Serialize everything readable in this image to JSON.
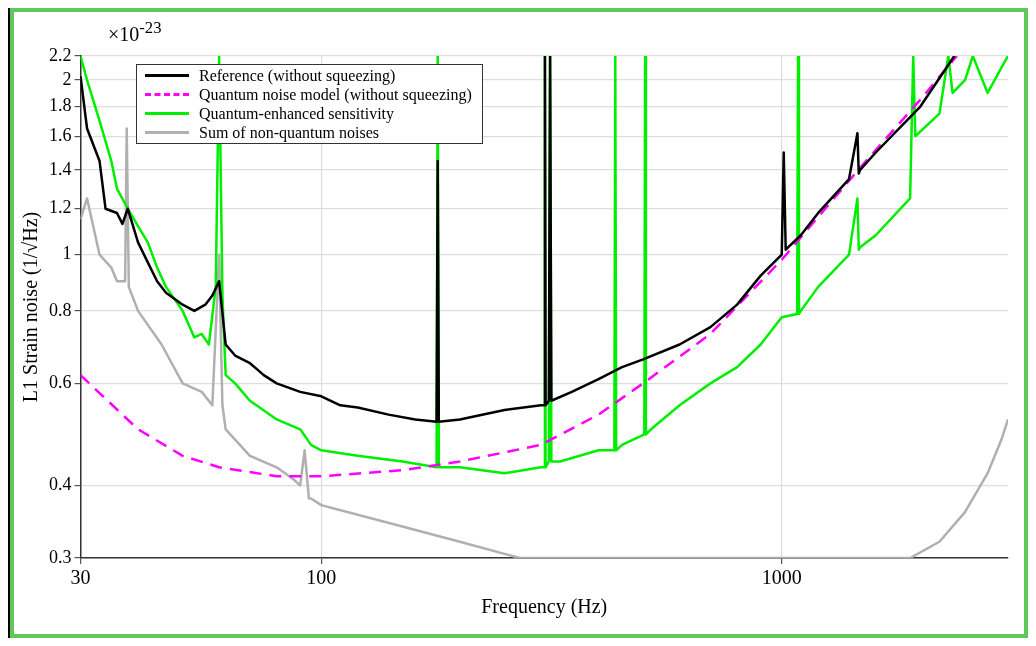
{
  "chart_data": {
    "type": "line",
    "xlabel": "Frequency (Hz)",
    "ylabel": "L1 Strain noise (1/√Hz)",
    "annotations": [
      "×10$^{-23}$"
    ],
    "log": "xy",
    "grid": true,
    "legend": "top left",
    "marker": "none",
    "xlim": [
      30,
      3100
    ],
    "ylim": [
      0.3,
      2.2
    ],
    "xticks": [
      30,
      100,
      1000
    ],
    "yticks": [
      0.3,
      0.4,
      0.6,
      0.8,
      1,
      1.2,
      1.4,
      1.6,
      1.8,
      2,
      2.2
    ],
    "series": [
      {
        "name": "Reference (without squeezing)",
        "color": "#000000",
        "line_style": "solid",
        "x": [
          30,
          31,
          33,
          34,
          36,
          37,
          38,
          40,
          42,
          44,
          46,
          50,
          53,
          56,
          58,
          60,
          62,
          65,
          70,
          75,
          80,
          90,
          100,
          110,
          120,
          140,
          160,
          178,
          179,
          180,
          200,
          250,
          300,
          305,
          306,
          307,
          312,
          314,
          316,
          350,
          400,
          450,
          500,
          600,
          700,
          800,
          900,
          1000,
          1010,
          1020,
          1100,
          1200,
          1400,
          1460,
          1470,
          1480,
          1600,
          2000,
          2370
        ],
        "values": [
          2.03,
          1.65,
          1.45,
          1.2,
          1.18,
          1.13,
          1.2,
          1.05,
          0.97,
          0.9,
          0.86,
          0.82,
          0.8,
          0.82,
          0.85,
          0.9,
          0.7,
          0.67,
          0.65,
          0.62,
          0.6,
          0.58,
          0.57,
          0.55,
          0.545,
          0.53,
          0.52,
          0.515,
          1.45,
          0.515,
          0.52,
          0.54,
          0.55,
          0.55,
          2.2,
          0.55,
          0.56,
          2.2,
          0.56,
          0.58,
          0.61,
          0.64,
          0.66,
          0.7,
          0.75,
          0.82,
          0.92,
          1.0,
          1.5,
          1.02,
          1.08,
          1.18,
          1.35,
          1.62,
          1.38,
          1.4,
          1.5,
          1.8,
          2.2
        ]
      },
      {
        "name": "Quantum noise model (without squeezing)",
        "color": "#ff00ff",
        "line_style": "dashed",
        "x": [
          30,
          40,
          50,
          60,
          80,
          100,
          150,
          200,
          300,
          400,
          500,
          700,
          1000,
          1500,
          2000,
          2400
        ],
        "values": [
          0.62,
          0.5,
          0.45,
          0.43,
          0.415,
          0.415,
          0.425,
          0.44,
          0.47,
          0.53,
          0.6,
          0.73,
          0.98,
          1.43,
          1.85,
          2.2
        ]
      },
      {
        "name": "Quantum-enhanced sensitivity",
        "color": "#00ee00",
        "line_style": "solid",
        "x": [
          30,
          31,
          33,
          35,
          36,
          38,
          40,
          42,
          44,
          46,
          50,
          53,
          55,
          57,
          59,
          60,
          61,
          62,
          65,
          70,
          80,
          90,
          95,
          100,
          120,
          150,
          178,
          179,
          180,
          200,
          250,
          300,
          305,
          306,
          307,
          312,
          314,
          316,
          330,
          400,
          433,
          435,
          437,
          450,
          503,
          505,
          507,
          520,
          600,
          700,
          800,
          900,
          1000,
          1080,
          1085,
          1090,
          1100,
          1200,
          1400,
          1460,
          1470,
          1480,
          1600,
          1900,
          1930,
          1950,
          2200,
          2300,
          2350,
          2500,
          2600,
          2800,
          3000,
          3100
        ],
        "values": [
          2.2,
          2.0,
          1.7,
          1.45,
          1.3,
          1.2,
          1.12,
          1.05,
          0.95,
          0.88,
          0.8,
          0.72,
          0.73,
          0.7,
          0.88,
          2.2,
          0.85,
          0.62,
          0.6,
          0.56,
          0.52,
          0.5,
          0.47,
          0.46,
          0.45,
          0.44,
          0.43,
          2.2,
          0.43,
          0.43,
          0.42,
          0.43,
          0.43,
          2.2,
          0.43,
          0.44,
          2.2,
          0.44,
          0.44,
          0.46,
          0.46,
          2.2,
          0.46,
          0.47,
          0.49,
          2.2,
          0.49,
          0.5,
          0.55,
          0.6,
          0.64,
          0.7,
          0.78,
          0.79,
          2.2,
          0.79,
          0.8,
          0.88,
          1.0,
          1.25,
          1.02,
          1.03,
          1.08,
          1.25,
          2.2,
          1.6,
          1.75,
          2.2,
          1.9,
          2.0,
          2.2,
          1.9,
          2.1,
          2.2
        ]
      },
      {
        "name": "Sum of non-quantum noises",
        "color": "#b0b0b0",
        "line_style": "solid",
        "x": [
          30,
          31,
          33,
          35,
          36,
          37.5,
          37.8,
          38.2,
          40,
          45,
          50,
          55,
          58,
          60,
          61,
          62,
          70,
          80,
          87,
          90,
          92,
          94,
          95,
          100,
          150,
          200,
          250,
          270,
          1900,
          2200,
          2500,
          2800,
          3000,
          3100
        ],
        "values": [
          1.15,
          1.25,
          1.0,
          0.95,
          0.9,
          0.9,
          1.65,
          0.88,
          0.8,
          0.7,
          0.6,
          0.58,
          0.55,
          1.0,
          0.55,
          0.5,
          0.45,
          0.43,
          0.41,
          0.4,
          0.46,
          0.38,
          0.38,
          0.37,
          0.34,
          0.32,
          0.305,
          0.3,
          0.3,
          0.32,
          0.36,
          0.42,
          0.48,
          0.52
        ]
      }
    ]
  }
}
